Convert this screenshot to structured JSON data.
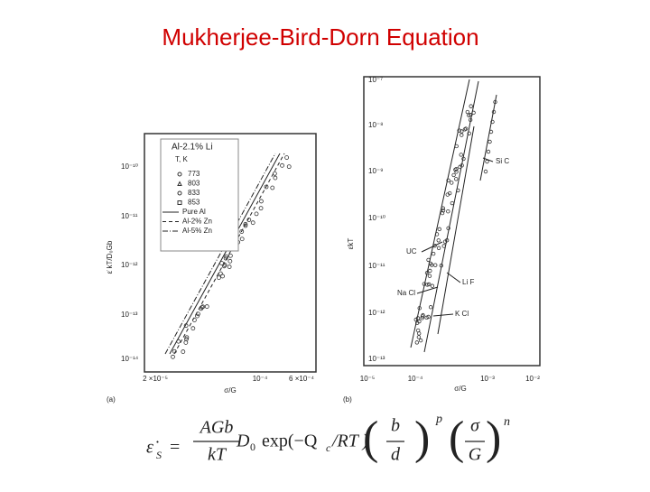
{
  "title": "Mukherjee-Bird-Dorn Equation",
  "figure_a": {
    "label": "(a)",
    "y_axis_label": "ε̇ kT/D₀Gb",
    "x_axis_label": "σ/G",
    "y_tick_labels": [
      "10⁻¹⁰",
      "10⁻¹¹",
      "10⁻¹²",
      "10⁻¹³",
      "10⁻¹⁴"
    ],
    "x_tick_labels": [
      "2 ×10⁻⁵",
      "10⁻⁴",
      "6 ×10⁻⁴"
    ],
    "legend": {
      "title": "Al-2.1% Li",
      "subtitle": "T, K",
      "entries": [
        "773",
        "803",
        "833",
        "853",
        "Pure Al",
        "Al-2% Zn",
        "Al-5% Zn"
      ]
    }
  },
  "figure_b": {
    "label": "(b)",
    "y_axis_label": "ε̇kT",
    "x_axis_label": "σ/G",
    "y_tick_labels": [
      "10⁻⁷",
      "10⁻⁸",
      "10⁻⁹",
      "10⁻¹⁰",
      "10⁻¹¹",
      "10⁻¹²",
      "10⁻¹³"
    ],
    "x_tick_labels": [
      "10⁻⁵",
      "10⁻⁴",
      "10⁻³",
      "10⁻²"
    ],
    "annotations": [
      "Si C",
      "UC",
      "Li F",
      "Na Cl",
      "K Cl"
    ]
  },
  "equation": {
    "lhs": "ε̇",
    "lhs_sub": "S",
    "equals": "=",
    "numerator": "AGb",
    "denominator": "kT",
    "d": "D",
    "d_sub": "0",
    "exp": "exp(−Q",
    "exp_sub": "c",
    "exp_end": "/RT )",
    "b": "b",
    "grain": "d",
    "p": "p",
    "sigma": "σ",
    "modulus": "G",
    "n": "n"
  }
}
